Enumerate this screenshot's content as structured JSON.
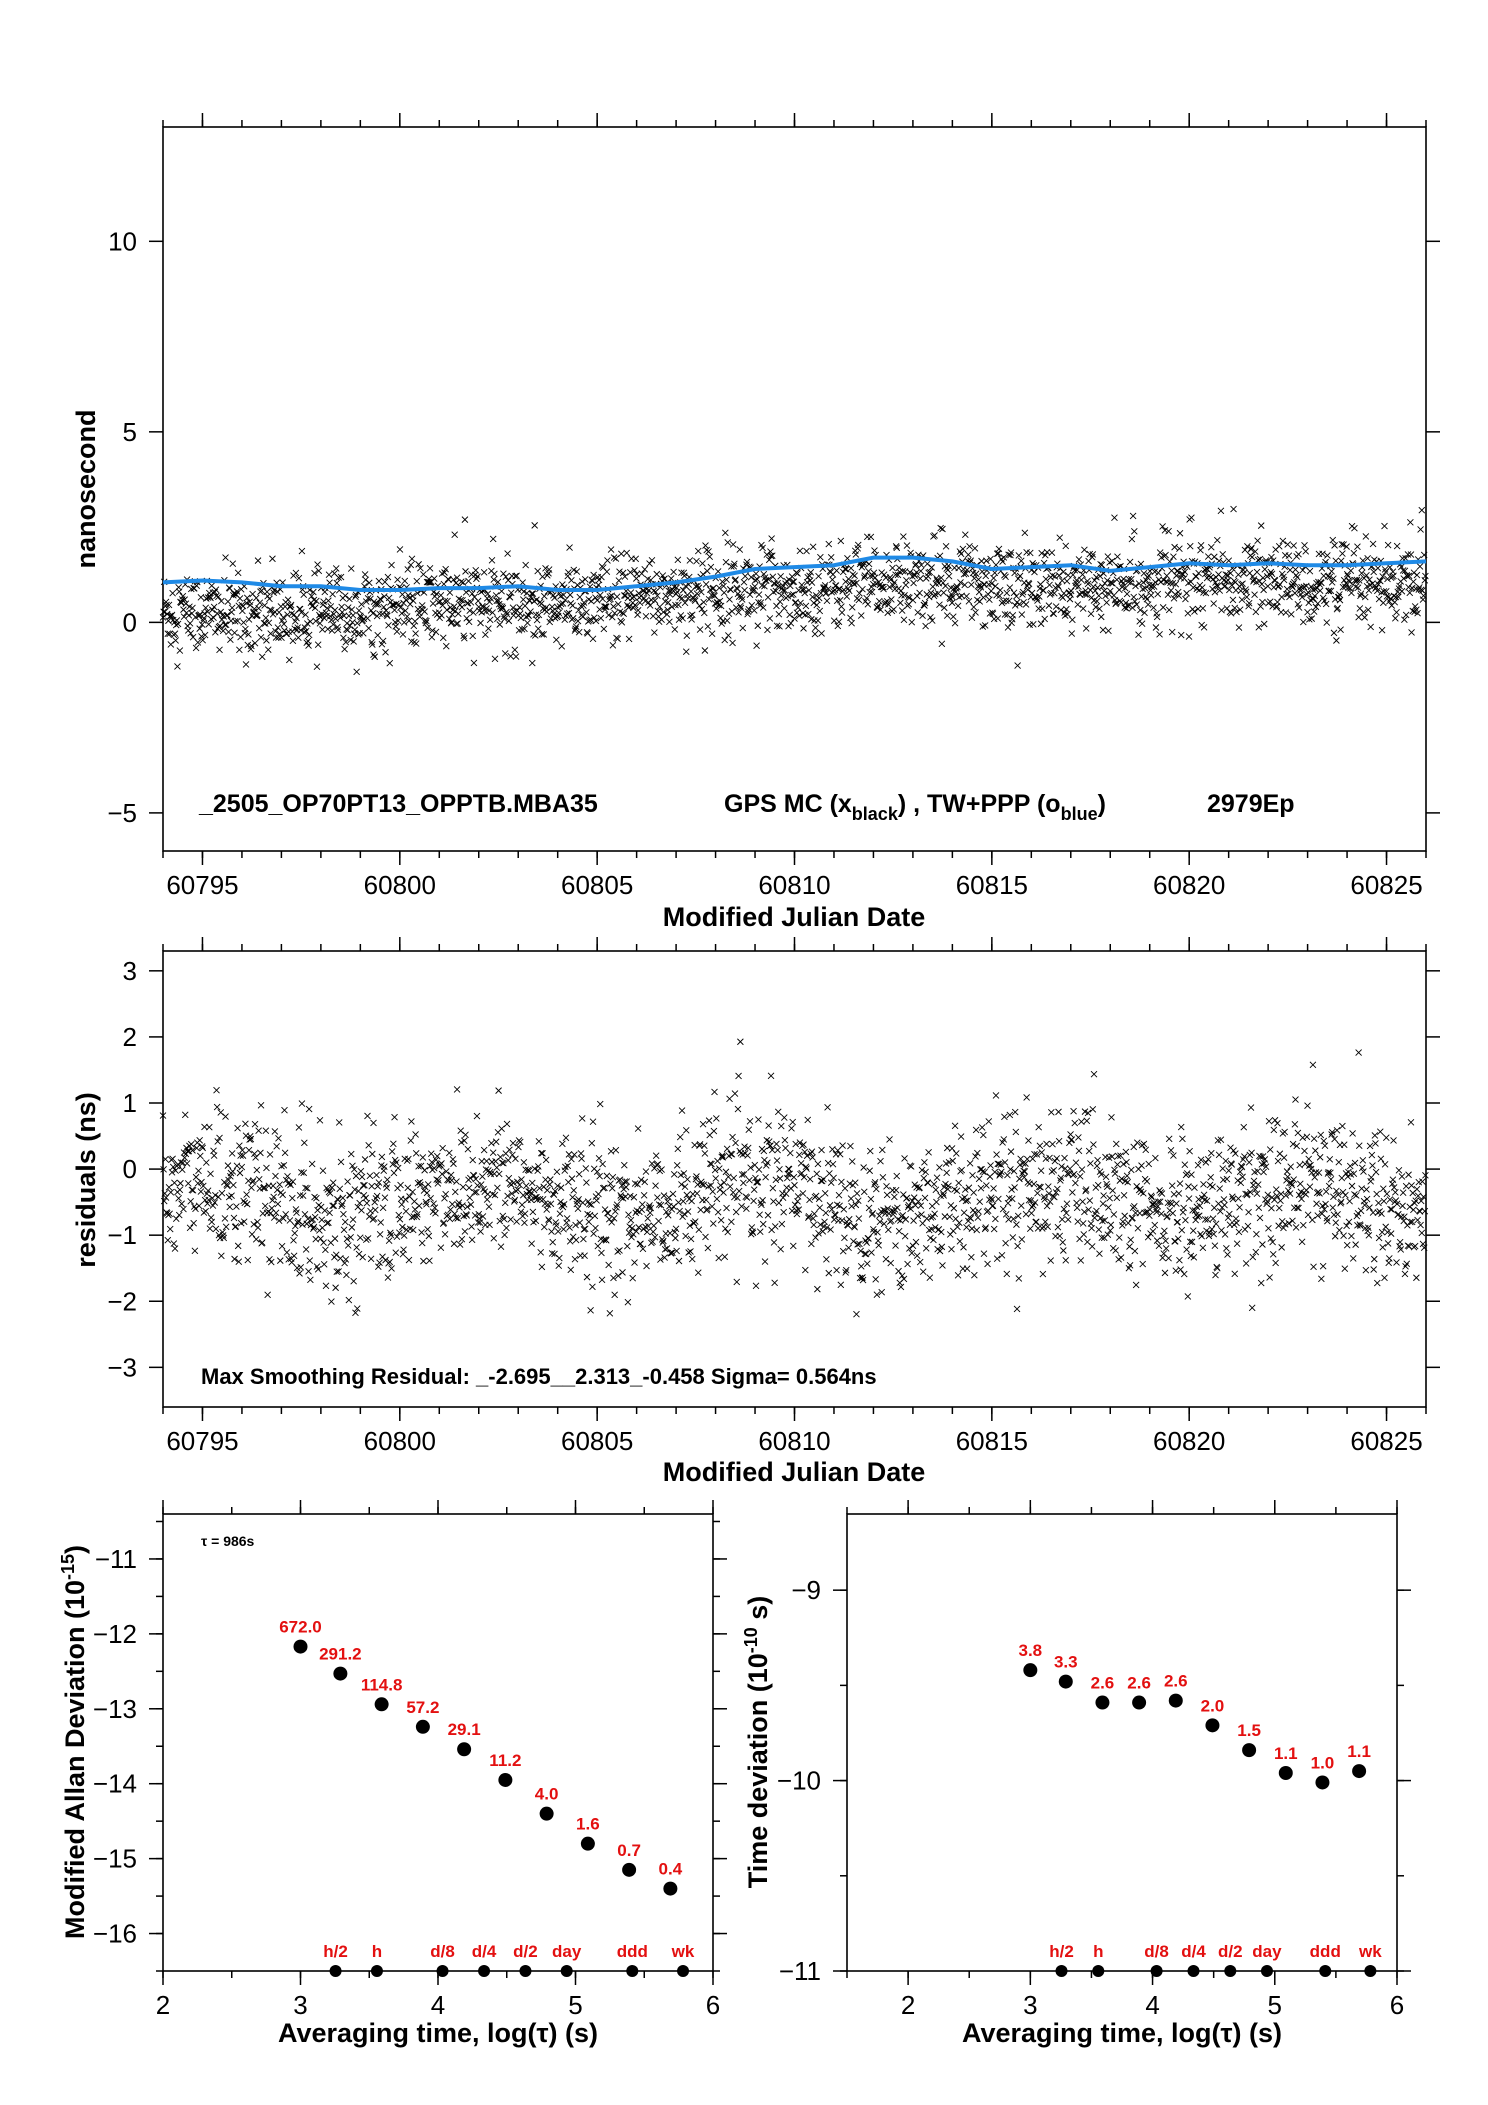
{
  "chart_data": [
    {
      "type": "scatter",
      "xlabel": "Modified Julian Date",
      "ylabel": "nanosecond",
      "xlim": [
        60794.0,
        60826.0
      ],
      "ylim": [
        -6.0,
        13.0
      ],
      "x_ticks": [
        "60795",
        "60800",
        "60805",
        "60810",
        "60815",
        "60820",
        "60825"
      ],
      "y_ticks": [
        "−5",
        "0",
        "5",
        "10"
      ],
      "annotation": {
        "id": "_2505_OP70PT13_OPPTB.MBA35",
        "legend_prefix": "GPS MC (x",
        "legend_black_sub": "black",
        "legend_mid": ") ,  TW+PPP (o",
        "legend_blue_sub": "blue",
        "legend_suffix": ")",
        "epochs": "2979Ep"
      },
      "series": [
        {
          "name": "GPS MC",
          "marker": "x",
          "color": "#000000",
          "trend": [
            [
              60794,
              0.3
            ],
            [
              60797,
              0.2
            ],
            [
              60799,
              0.3
            ],
            [
              60801,
              0.5
            ],
            [
              60803,
              0.5
            ],
            [
              60805,
              0.5
            ],
            [
              60808,
              0.9
            ],
            [
              60810,
              0.9
            ],
            [
              60812,
              1.0
            ],
            [
              60814,
              1.1
            ],
            [
              60816,
              0.9
            ],
            [
              60818,
              0.9
            ],
            [
              60820,
              1.1
            ],
            [
              60822,
              1.1
            ],
            [
              60824,
              0.9
            ],
            [
              60826,
              0.9
            ]
          ],
          "spread": 0.55,
          "count": 2979
        },
        {
          "name": "TW+PPP",
          "marker": "line",
          "color": "#1f8ae6",
          "points": [
            [
              60794,
              1.05
            ],
            [
              60795,
              1.1
            ],
            [
              60796,
              1.05
            ],
            [
              60797,
              0.95
            ],
            [
              60798,
              0.95
            ],
            [
              60799,
              0.85
            ],
            [
              60800,
              0.85
            ],
            [
              60801,
              0.9
            ],
            [
              60802,
              0.9
            ],
            [
              60803,
              0.95
            ],
            [
              60804,
              0.85
            ],
            [
              60805,
              0.85
            ],
            [
              60806,
              0.95
            ],
            [
              60807,
              1.05
            ],
            [
              60808,
              1.2
            ],
            [
              60809,
              1.4
            ],
            [
              60810,
              1.45
            ],
            [
              60811,
              1.5
            ],
            [
              60812,
              1.7
            ],
            [
              60813,
              1.7
            ],
            [
              60814,
              1.6
            ],
            [
              60815,
              1.4
            ],
            [
              60816,
              1.45
            ],
            [
              60817,
              1.5
            ],
            [
              60818,
              1.35
            ],
            [
              60819,
              1.45
            ],
            [
              60820,
              1.55
            ],
            [
              60821,
              1.5
            ],
            [
              60822,
              1.55
            ],
            [
              60823,
              1.5
            ],
            [
              60824,
              1.5
            ],
            [
              60825,
              1.55
            ],
            [
              60826,
              1.6
            ]
          ]
        }
      ]
    },
    {
      "type": "scatter",
      "xlabel": "Modified Julian Date",
      "ylabel": "residuals (ns)",
      "xlim": [
        60794.0,
        60826.0
      ],
      "ylim": [
        -3.6,
        3.3
      ],
      "x_ticks": [
        "60795",
        "60800",
        "60805",
        "60810",
        "60815",
        "60820",
        "60825"
      ],
      "y_ticks": [
        "−3",
        "−2",
        "−1",
        "0",
        "1",
        "2",
        "3"
      ],
      "annotation": "Max Smoothing Residual: _-2.695__2.313_-0.458  Sigma= 0.564ns",
      "series": [
        {
          "marker": "x",
          "color": "#000000",
          "center": -0.45,
          "sigma": 0.56,
          "min": -2.695,
          "max": 2.313,
          "count": 2979
        }
      ]
    },
    {
      "type": "scatter",
      "xlabel": "Averaging time, log(τ) (s)",
      "ylabel": "Modified Allan Deviation (10",
      "ylabel_sup": "-15",
      "ylabel_suffix": ")",
      "xlim": [
        2.0,
        6.0
      ],
      "ylim": [
        -16.5,
        -10.4
      ],
      "x_ticks": [
        "2",
        "3",
        "4",
        "5",
        "6"
      ],
      "y_ticks": [
        "−16",
        "−15",
        "−14",
        "−13",
        "−12",
        "−11"
      ],
      "annotation": "τ = 986s",
      "points": [
        {
          "x": 3.0,
          "y": -12.17,
          "label": "672.0"
        },
        {
          "x": 3.29,
          "y": -12.53,
          "label": "291.2"
        },
        {
          "x": 3.59,
          "y": -12.94,
          "label": "114.8"
        },
        {
          "x": 3.89,
          "y": -13.24,
          "label": "57.2"
        },
        {
          "x": 4.19,
          "y": -13.54,
          "label": "29.1"
        },
        {
          "x": 4.49,
          "y": -13.95,
          "label": "11.2"
        },
        {
          "x": 4.79,
          "y": -14.4,
          "label": "4.0"
        },
        {
          "x": 5.09,
          "y": -14.8,
          "label": "1.6"
        },
        {
          "x": 5.39,
          "y": -15.15,
          "label": "0.7"
        },
        {
          "x": 5.69,
          "y": -15.4,
          "label": "0.4"
        }
      ],
      "markers": [
        {
          "x": 3.255,
          "label": "h/2"
        },
        {
          "x": 3.556,
          "label": "h"
        },
        {
          "x": 4.033,
          "label": "d/8"
        },
        {
          "x": 4.335,
          "label": "d/4"
        },
        {
          "x": 4.636,
          "label": "d/2"
        },
        {
          "x": 4.936,
          "label": "day"
        },
        {
          "x": 5.413,
          "label": "ddd"
        },
        {
          "x": 5.782,
          "label": "wk"
        }
      ]
    },
    {
      "type": "scatter",
      "xlabel": "Averaging time, log(τ) (s)",
      "ylabel": "Time deviation (10",
      "ylabel_sup": "-10",
      "ylabel_suffix": " s)",
      "xlim": [
        1.5,
        6.0
      ],
      "ylim": [
        -11.0,
        -8.6
      ],
      "x_ticks": [
        "2",
        "3",
        "4",
        "5",
        "6"
      ],
      "y_ticks": [
        "−11",
        "−10",
        "−9"
      ],
      "points": [
        {
          "x": 3.0,
          "y": -9.42,
          "label": "3.8"
        },
        {
          "x": 3.29,
          "y": -9.48,
          "label": "3.3"
        },
        {
          "x": 3.59,
          "y": -9.59,
          "label": "2.6"
        },
        {
          "x": 3.89,
          "y": -9.59,
          "label": "2.6"
        },
        {
          "x": 4.19,
          "y": -9.58,
          "label": "2.6"
        },
        {
          "x": 4.49,
          "y": -9.71,
          "label": "2.0"
        },
        {
          "x": 4.79,
          "y": -9.84,
          "label": "1.5"
        },
        {
          "x": 5.09,
          "y": -9.96,
          "label": "1.1"
        },
        {
          "x": 5.39,
          "y": -10.01,
          "label": "1.0"
        },
        {
          "x": 5.69,
          "y": -9.95,
          "label": "1.1"
        }
      ],
      "markers": [
        {
          "x": 3.255,
          "label": "h/2"
        },
        {
          "x": 3.556,
          "label": "h"
        },
        {
          "x": 4.033,
          "label": "d/8"
        },
        {
          "x": 4.335,
          "label": "d/4"
        },
        {
          "x": 4.636,
          "label": "d/2"
        },
        {
          "x": 4.936,
          "label": "day"
        },
        {
          "x": 5.413,
          "label": "ddd"
        },
        {
          "x": 5.782,
          "label": "wk"
        }
      ]
    }
  ]
}
